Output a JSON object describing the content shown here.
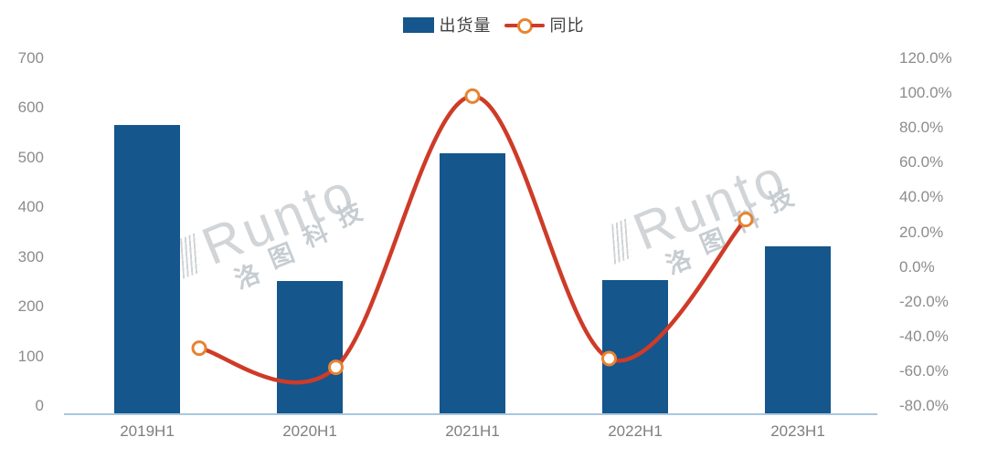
{
  "legend": {
    "bar_label": "出货量",
    "line_label": "同比"
  },
  "chart_data": {
    "type": "bar",
    "subtype": "bar-line-combo",
    "categories": [
      "2019H1",
      "2020H1",
      "2021H1",
      "2022H1",
      "2023H1"
    ],
    "series": [
      {
        "name": "出货量",
        "type": "bar",
        "axis": "left",
        "values": [
          583,
          268,
          525,
          270,
          338
        ]
      },
      {
        "name": "同比",
        "type": "line",
        "axis": "right",
        "values": [
          -42,
          -53,
          103,
          -48,
          32
        ]
      }
    ],
    "left_axis": {
      "min": 0,
      "max": 700,
      "ticks": [
        "700",
        "600",
        "500",
        "400",
        "300",
        "200",
        "100",
        "0"
      ]
    },
    "right_axis": {
      "min": -80,
      "max": 120,
      "ticks": [
        "120.0%",
        "100.0%",
        "80.0%",
        "60.0%",
        "40.0%",
        "20.0%",
        "0.0%",
        "-20.0%",
        "-40.0%",
        "-60.0%",
        "-80.0%"
      ]
    },
    "grid": "off",
    "legend_position": "top-center",
    "title": "",
    "xlabel": "",
    "ylabel": ""
  },
  "watermark": {
    "brand": "Runto",
    "company": "洛图科技",
    "company_chars": [
      "洛",
      "图",
      "科",
      "技"
    ]
  },
  "colors": {
    "bar": "#15568C",
    "line": "#CE3B28",
    "marker_ring": "#E8832F",
    "marker_fill": "#FFFFFF",
    "axis_text": "#8C8C8C",
    "x_axis_text": "#7F7F7F",
    "baseline": "#AAC6DD",
    "legend_text": "#404040",
    "watermark": "#D2D5D8"
  }
}
